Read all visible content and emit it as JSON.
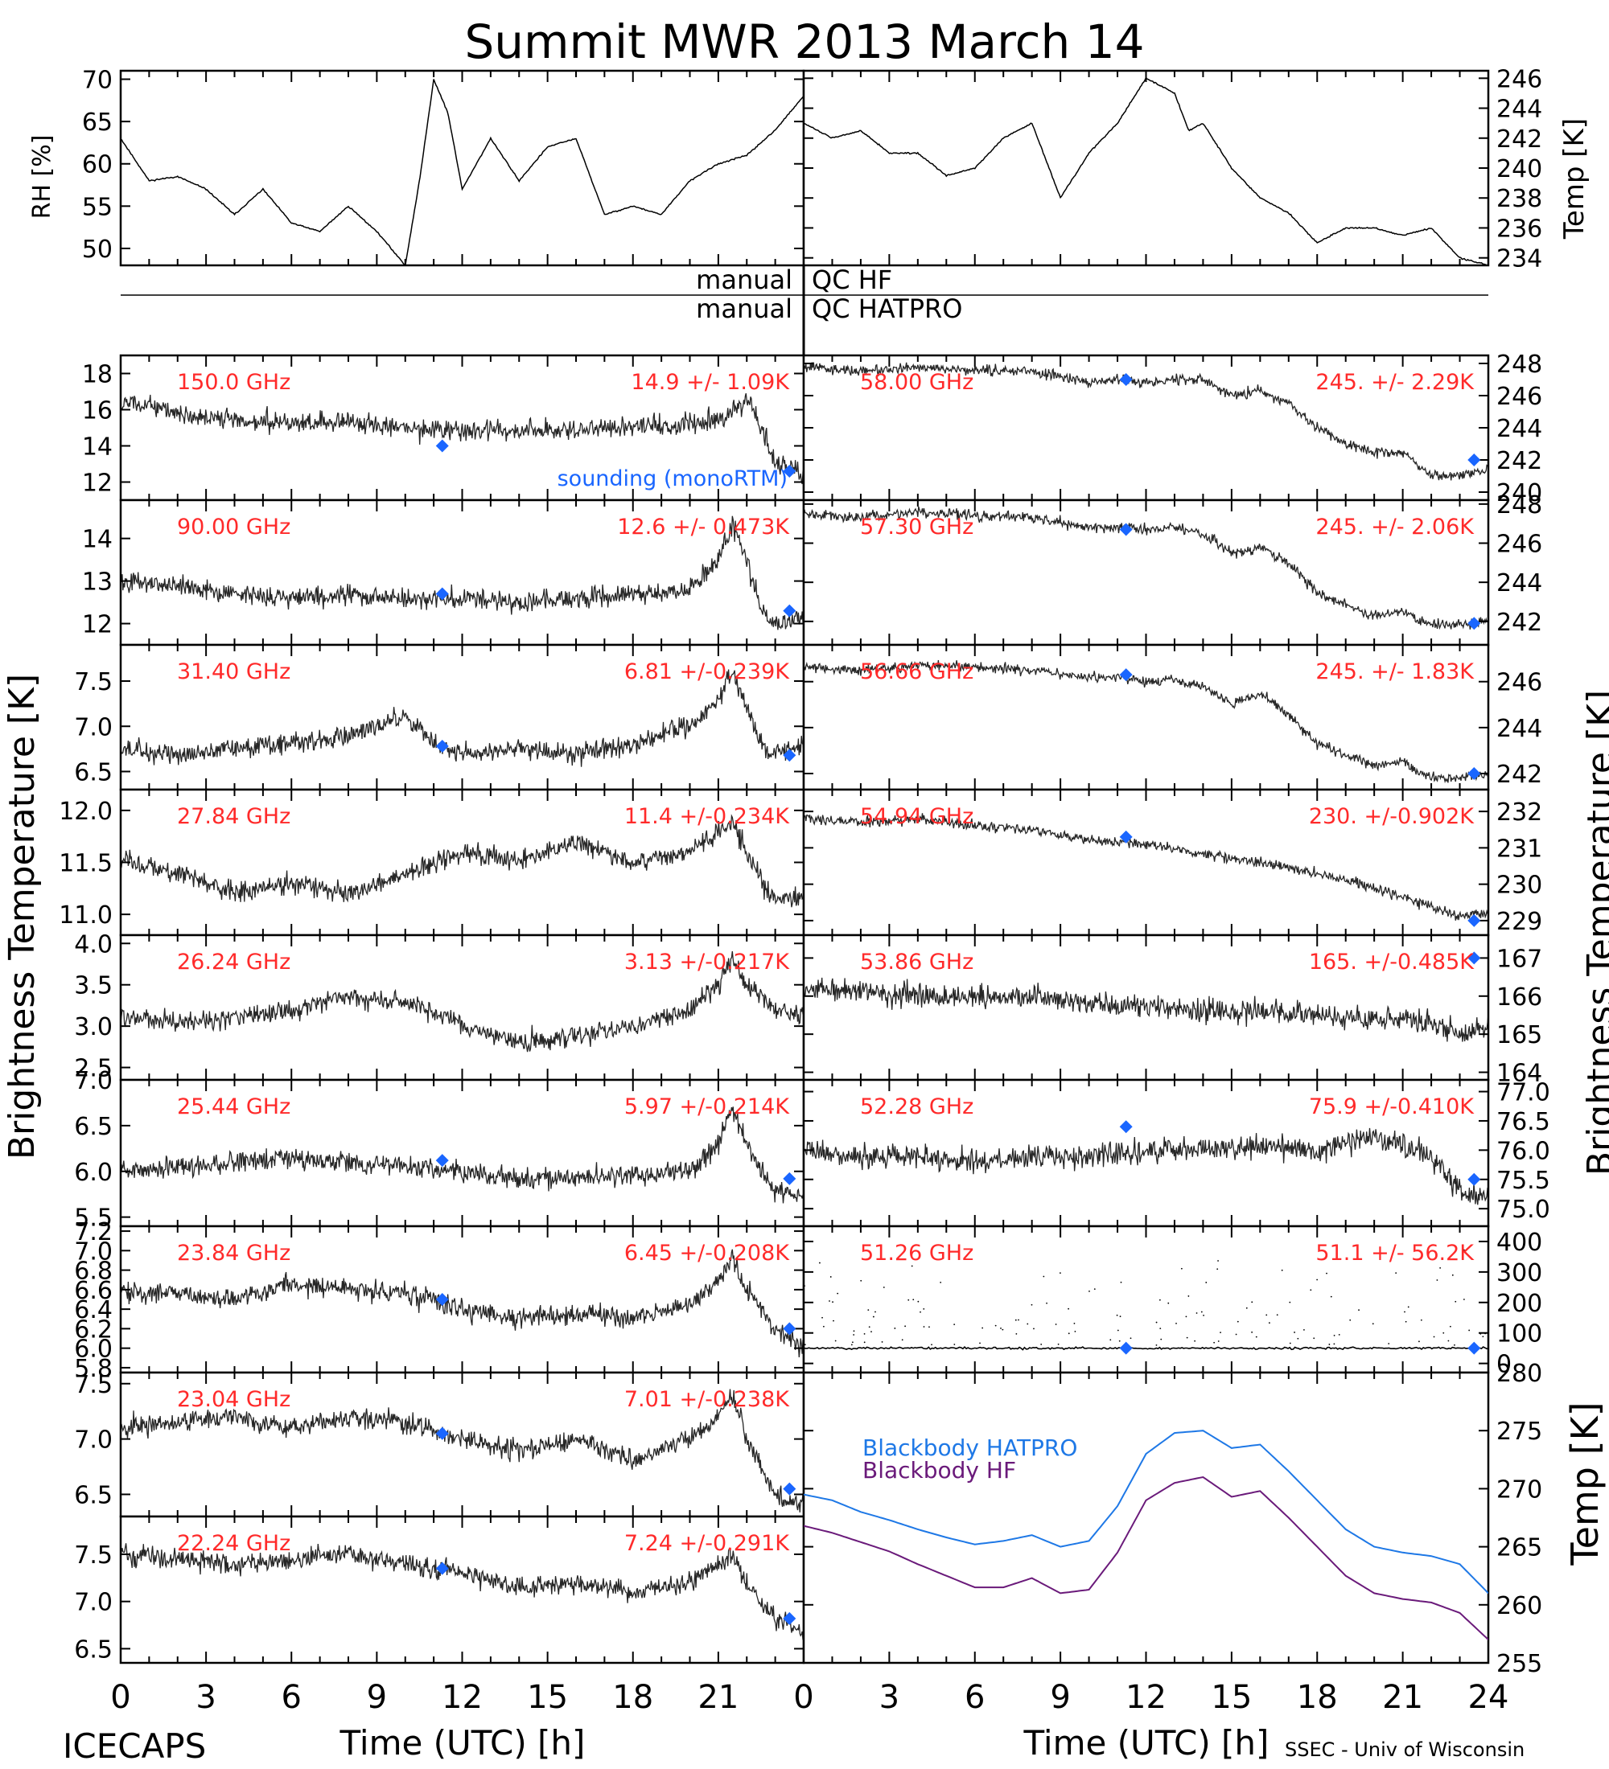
{
  "title": "Summit MWR 2013 March 14",
  "footer": {
    "left": "ICECAPS",
    "right": "SSEC - Univ of Wisconsin",
    "xlabel": "Time (UTC) [h]"
  },
  "axis_labels": {
    "left_bt": "Brightness Temperature [K]",
    "right_bt": "Brightness Temperature [K]",
    "rh": "RH [%]",
    "temp_top": "Temp [K]",
    "temp_bottom": "Temp [K]"
  },
  "qc": {
    "hf_left": "manual",
    "hf_right": "QC HF",
    "hatpro_left": "manual",
    "hatpro_right": "QC HATPRO"
  },
  "legend": {
    "sounding": "sounding (monoRTM)",
    "bb_hatpro": "Blackbody HATPRO",
    "bb_hf": "Blackbody HF"
  },
  "colors": {
    "data": "#000000",
    "label": "#ff2a2a",
    "sounding": "#1a66ff",
    "bb_hatpro": "#1e78e6",
    "bb_hf": "#6a1a7a"
  },
  "x_ticks": [
    "0",
    "3",
    "6",
    "9",
    "12",
    "15",
    "18",
    "21",
    "24"
  ],
  "chart_data": [
    {
      "type": "line",
      "title": "RH",
      "ylabel": "RH [%]",
      "ylim": [
        48,
        71
      ],
      "yticks": [
        "50",
        "55",
        "60",
        "65",
        "70"
      ],
      "xlim": [
        0,
        24
      ],
      "x": [
        0,
        1,
        2,
        3,
        4,
        5,
        6,
        7,
        8,
        9,
        9.5,
        10,
        10.5,
        11,
        11.5,
        12,
        12.5,
        13,
        14,
        15,
        16,
        17,
        18,
        19,
        20,
        21,
        22,
        23,
        24
      ],
      "values": [
        63,
        58,
        58.5,
        57,
        54,
        57,
        53,
        52,
        55,
        52,
        50,
        48,
        58,
        70,
        66,
        57,
        60,
        63,
        58,
        62,
        63,
        54,
        55,
        54,
        58,
        60,
        61,
        64,
        68
      ]
    },
    {
      "type": "line",
      "title": "Temp",
      "ylabel": "Temp [K]",
      "ylim": [
        233.5,
        246.5
      ],
      "yticks": [
        "234",
        "236",
        "238",
        "240",
        "242",
        "244",
        "246"
      ],
      "xlim": [
        0,
        24
      ],
      "x": [
        0,
        1,
        2,
        3,
        4,
        5,
        6,
        7,
        8,
        9,
        10,
        11,
        12,
        13,
        13.5,
        14,
        15,
        16,
        17,
        18,
        19,
        20,
        21,
        22,
        23,
        24
      ],
      "values": [
        243,
        242,
        242.5,
        241,
        241,
        239.5,
        240,
        242,
        243,
        238,
        241,
        243,
        246,
        245,
        242.5,
        243,
        240,
        238,
        237,
        235,
        236,
        236,
        235.5,
        236,
        234,
        233.5
      ]
    },
    {
      "type": "line",
      "title": "150.0 GHz",
      "label": "150.0 GHz",
      "stats": "14.9 +/- 1.09K",
      "ylim": [
        11,
        19
      ],
      "yticks": [
        "12",
        "14",
        "16",
        "18"
      ],
      "xlim": [
        0,
        24
      ],
      "x": [
        0,
        2,
        4,
        6,
        8,
        10,
        12,
        14,
        16,
        18,
        20,
        21,
        22,
        22.5,
        23,
        24
      ],
      "values": [
        16.5,
        15.8,
        15.5,
        15.2,
        15.3,
        15.0,
        14.8,
        14.9,
        14.8,
        15.1,
        15.2,
        15.5,
        16.5,
        15.0,
        13.0,
        12.5
      ],
      "sounding": [
        {
          "x": 11.3,
          "y": 14.0
        },
        {
          "x": 23.5,
          "y": 12.6
        }
      ]
    },
    {
      "type": "line",
      "title": "90.00 GHz",
      "label": "90.00 GHz",
      "stats": "12.6 +/- 0.473K",
      "ylim": [
        11.5,
        14.9
      ],
      "yticks": [
        "12",
        "13",
        "14"
      ],
      "xlim": [
        0,
        24
      ],
      "x": [
        0,
        2,
        4,
        6,
        8,
        10,
        12,
        14,
        16,
        18,
        20,
        21,
        21.5,
        22,
        22.5,
        23,
        24
      ],
      "values": [
        13.0,
        12.9,
        12.7,
        12.6,
        12.7,
        12.6,
        12.6,
        12.5,
        12.6,
        12.7,
        12.8,
        13.5,
        14.3,
        13.5,
        12.3,
        12.0,
        12.1
      ],
      "sounding": [
        {
          "x": 11.3,
          "y": 12.7
        },
        {
          "x": 23.5,
          "y": 12.3
        }
      ]
    },
    {
      "type": "line",
      "title": "31.40 GHz",
      "label": "31.40 GHz",
      "stats": "6.81 +/-0.239K",
      "ylim": [
        6.3,
        7.9
      ],
      "yticks": [
        "6.5",
        "7.0",
        "7.5"
      ],
      "xlim": [
        0,
        24
      ],
      "x": [
        0,
        2,
        4,
        6,
        8,
        10,
        11,
        12,
        14,
        16,
        18,
        20,
        21,
        21.5,
        22,
        22.5,
        23,
        24
      ],
      "values": [
        6.75,
        6.7,
        6.75,
        6.8,
        6.9,
        7.1,
        6.8,
        6.7,
        6.75,
        6.7,
        6.8,
        7.0,
        7.3,
        7.6,
        7.2,
        6.8,
        6.7,
        6.8
      ],
      "sounding": [
        {
          "x": 11.3,
          "y": 6.78
        },
        {
          "x": 23.5,
          "y": 6.68
        }
      ]
    },
    {
      "type": "line",
      "title": "27.84 GHz",
      "label": "27.84 GHz",
      "stats": "11.4 +/-0.234K",
      "ylim": [
        10.8,
        12.2
      ],
      "yticks": [
        "11.0",
        "11.5",
        "12.0"
      ],
      "xlim": [
        0,
        24
      ],
      "x": [
        0,
        2,
        4,
        6,
        8,
        10,
        12,
        14,
        16,
        18,
        20,
        21,
        21.5,
        22,
        23,
        24
      ],
      "values": [
        11.5,
        11.4,
        11.2,
        11.3,
        11.2,
        11.4,
        11.6,
        11.5,
        11.7,
        11.5,
        11.6,
        11.8,
        11.9,
        11.6,
        11.1,
        11.2
      ],
      "sounding": []
    },
    {
      "type": "line",
      "title": "26.24 GHz",
      "label": "26.24 GHz",
      "stats": "3.13 +/-0.217K",
      "ylim": [
        2.35,
        4.1
      ],
      "yticks": [
        "2.5",
        "3.0",
        "3.5",
        "4.0"
      ],
      "xlim": [
        0,
        24
      ],
      "x": [
        0,
        2,
        4,
        6,
        8,
        10,
        12,
        14,
        16,
        18,
        20,
        21,
        21.5,
        22,
        23,
        24
      ],
      "values": [
        3.1,
        3.05,
        3.1,
        3.2,
        3.35,
        3.3,
        3.0,
        2.8,
        2.9,
        3.0,
        3.2,
        3.5,
        3.8,
        3.5,
        3.2,
        3.15
      ],
      "sounding": []
    },
    {
      "type": "line",
      "title": "25.44 GHz",
      "label": "25.44 GHz",
      "stats": "5.97 +/-0.214K",
      "ylim": [
        5.4,
        7.0
      ],
      "yticks": [
        "5.5",
        "6.0",
        "6.5",
        "7.0"
      ],
      "xlim": [
        0,
        24
      ],
      "x": [
        0,
        2,
        4,
        6,
        8,
        10,
        12,
        14,
        16,
        18,
        20,
        21,
        21.5,
        22,
        23,
        24
      ],
      "values": [
        6.0,
        6.05,
        6.1,
        6.15,
        6.1,
        6.05,
        6.0,
        5.9,
        5.95,
        5.95,
        6.0,
        6.3,
        6.7,
        6.3,
        5.8,
        5.7
      ],
      "sounding": [
        {
          "x": 11.3,
          "y": 6.12
        },
        {
          "x": 23.5,
          "y": 5.92
        }
      ]
    },
    {
      "type": "line",
      "title": "23.84 GHz",
      "label": "23.84 GHz",
      "stats": "6.45 +/-0.208K",
      "ylim": [
        5.75,
        7.25
      ],
      "yticks": [
        "5.8",
        "6.0",
        "6.2",
        "6.4",
        "6.6",
        "6.8",
        "7.0",
        "7.2"
      ],
      "xlim": [
        0,
        24
      ],
      "x": [
        0,
        2,
        4,
        6,
        8,
        10,
        12,
        14,
        16,
        18,
        20,
        21,
        21.5,
        22,
        23,
        24
      ],
      "values": [
        6.6,
        6.55,
        6.5,
        6.65,
        6.6,
        6.55,
        6.4,
        6.3,
        6.35,
        6.3,
        6.45,
        6.7,
        6.9,
        6.6,
        6.2,
        6.0
      ],
      "sounding": [
        {
          "x": 11.3,
          "y": 6.5
        },
        {
          "x": 23.5,
          "y": 6.2
        }
      ]
    },
    {
      "type": "line",
      "title": "23.04 GHz",
      "label": "23.04 GHz",
      "stats": "7.01 +/-0.238K",
      "ylim": [
        6.3,
        7.6
      ],
      "yticks": [
        "6.5",
        "7.0",
        "7.5"
      ],
      "xlim": [
        0,
        24
      ],
      "x": [
        0,
        2,
        4,
        6,
        8,
        10,
        12,
        14,
        16,
        18,
        20,
        21,
        21.5,
        22,
        23,
        24
      ],
      "values": [
        7.1,
        7.15,
        7.2,
        7.1,
        7.2,
        7.15,
        7.0,
        6.9,
        7.0,
        6.8,
        7.0,
        7.2,
        7.4,
        7.0,
        6.5,
        6.4
      ],
      "sounding": [
        {
          "x": 11.3,
          "y": 7.05
        },
        {
          "x": 23.5,
          "y": 6.55
        }
      ]
    },
    {
      "type": "line",
      "title": "22.24 GHz",
      "label": "22.24 GHz",
      "stats": "7.24 +/-0.291K",
      "ylim": [
        6.35,
        7.9
      ],
      "yticks": [
        "6.5",
        "7.0",
        "7.5"
      ],
      "xlim": [
        0,
        24
      ],
      "x": [
        0,
        2,
        4,
        6,
        8,
        10,
        12,
        14,
        16,
        18,
        20,
        21,
        21.5,
        22,
        23,
        24
      ],
      "values": [
        7.5,
        7.45,
        7.4,
        7.45,
        7.5,
        7.4,
        7.3,
        7.15,
        7.2,
        7.1,
        7.2,
        7.4,
        7.5,
        7.2,
        6.8,
        6.7
      ],
      "sounding": [
        {
          "x": 11.3,
          "y": 7.35
        },
        {
          "x": 23.5,
          "y": 6.82
        }
      ]
    },
    {
      "type": "line",
      "title": "58.00 GHz",
      "label": "58.00 GHz",
      "stats": "245. +/- 2.29K",
      "ylim": [
        239.5,
        248.5
      ],
      "yticks": [
        "240",
        "242",
        "244",
        "246",
        "248"
      ],
      "xlim": [
        0,
        24
      ],
      "x": [
        0,
        2,
        4,
        6,
        8,
        10,
        11,
        12,
        13,
        14,
        15,
        16,
        17,
        18,
        19,
        20,
        21,
        22,
        23,
        24
      ],
      "values": [
        247.8,
        247.5,
        247.8,
        247.6,
        247.5,
        246.8,
        247.0,
        246.8,
        247.0,
        247.0,
        246.0,
        246.3,
        245.5,
        244.0,
        243.0,
        242.5,
        242.5,
        241.0,
        241.0,
        241.5
      ],
      "sounding": [
        {
          "x": 11.3,
          "y": 247.0
        },
        {
          "x": 23.5,
          "y": 242.0
        }
      ]
    },
    {
      "type": "line",
      "title": "57.30 GHz",
      "label": "57.30 GHz",
      "stats": "245. +/- 2.06K",
      "ylim": [
        240.8,
        248.2
      ],
      "yticks": [
        "242",
        "244",
        "246",
        "248"
      ],
      "xlim": [
        0,
        24
      ],
      "x": [
        0,
        2,
        4,
        6,
        8,
        10,
        11,
        12,
        13,
        14,
        15,
        16,
        17,
        18,
        19,
        20,
        21,
        22,
        23,
        24
      ],
      "values": [
        247.5,
        247.3,
        247.6,
        247.4,
        247.3,
        246.8,
        246.8,
        246.7,
        246.8,
        246.5,
        245.5,
        245.8,
        245.0,
        243.5,
        242.8,
        242.3,
        242.5,
        241.8,
        241.8,
        242.0
      ],
      "sounding": [
        {
          "x": 11.3,
          "y": 246.7
        },
        {
          "x": 23.5,
          "y": 241.9
        }
      ]
    },
    {
      "type": "line",
      "title": "56.66 GHz",
      "label": "56.66 GHz",
      "stats": "245. +/- 1.83K",
      "ylim": [
        241.3,
        247.6
      ],
      "yticks": [
        "242",
        "244",
        "246"
      ],
      "xlim": [
        0,
        24
      ],
      "x": [
        0,
        2,
        4,
        6,
        8,
        10,
        11,
        12,
        13,
        14,
        15,
        16,
        17,
        18,
        19,
        20,
        21,
        22,
        23,
        24
      ],
      "values": [
        246.7,
        246.5,
        246.7,
        246.6,
        246.5,
        246.2,
        246.2,
        246.0,
        246.1,
        245.8,
        245.0,
        245.5,
        244.6,
        243.3,
        242.8,
        242.4,
        242.5,
        241.8,
        241.8,
        242.0
      ],
      "sounding": [
        {
          "x": 11.3,
          "y": 246.3
        },
        {
          "x": 23.5,
          "y": 242.0
        }
      ]
    },
    {
      "type": "line",
      "title": "54.94 GHz",
      "label": "54.94 GHz",
      "stats": "230. +/-0.902K",
      "ylim": [
        228.6,
        232.6
      ],
      "yticks": [
        "229",
        "230",
        "231",
        "232"
      ],
      "xlim": [
        0,
        24
      ],
      "x": [
        0,
        2,
        4,
        6,
        8,
        10,
        12,
        14,
        16,
        18,
        20,
        22,
        23,
        24
      ],
      "values": [
        231.8,
        231.7,
        231.8,
        231.6,
        231.5,
        231.2,
        231.1,
        230.8,
        230.6,
        230.3,
        229.9,
        229.4,
        229.1,
        229.2
      ],
      "sounding": [
        {
          "x": 11.3,
          "y": 231.3
        },
        {
          "x": 23.5,
          "y": 229.0
        }
      ]
    },
    {
      "type": "line",
      "title": "53.86 GHz",
      "label": "53.86 GHz",
      "stats": "165. +/-0.485K",
      "ylim": [
        163.8,
        167.6
      ],
      "yticks": [
        "164",
        "165",
        "166",
        "167"
      ],
      "xlim": [
        0,
        24
      ],
      "x": [
        0,
        2,
        4,
        6,
        8,
        10,
        12,
        14,
        16,
        18,
        20,
        22,
        23,
        24
      ],
      "values": [
        166.2,
        166.1,
        166.0,
        166.0,
        166.0,
        165.8,
        165.7,
        165.6,
        165.6,
        165.5,
        165.4,
        165.3,
        165.0,
        165.2
      ],
      "sounding": [
        {
          "x": 23.5,
          "y": 167.0
        }
      ]
    },
    {
      "type": "line",
      "title": "52.28 GHz",
      "label": "52.28 GHz",
      "stats": "75.9 +/-0.410K",
      "ylim": [
        74.7,
        77.2
      ],
      "yticks": [
        "75.0",
        "75.5",
        "76.0",
        "76.5",
        "77.0"
      ],
      "xlim": [
        0,
        24
      ],
      "x": [
        0,
        2,
        4,
        6,
        8,
        10,
        12,
        14,
        16,
        18,
        20,
        21,
        22,
        23,
        24
      ],
      "values": [
        76.0,
        75.9,
        75.9,
        75.8,
        75.9,
        75.9,
        76.0,
        76.0,
        76.1,
        76.0,
        76.2,
        76.1,
        75.9,
        75.3,
        75.2
      ],
      "sounding": [
        {
          "x": 11.3,
          "y": 76.4
        },
        {
          "x": 23.5,
          "y": 75.5
        }
      ]
    },
    {
      "type": "scatter",
      "title": "51.26 GHz",
      "label": "51.26 GHz",
      "stats": "51.1 +/- 56.2K",
      "ylim": [
        -30,
        450
      ],
      "yticks": [
        "0",
        "100",
        "200",
        "300",
        "400"
      ],
      "xlim": [
        0,
        24
      ],
      "x": [
        0,
        4,
        8,
        12,
        16,
        20,
        24
      ],
      "values": [
        50,
        50,
        50,
        50,
        50,
        50,
        50
      ],
      "sounding": [
        {
          "x": 11.3,
          "y": 50
        },
        {
          "x": 23.5,
          "y": 50
        }
      ]
    },
    {
      "type": "line",
      "title": "Blackbody",
      "ylabel": "Temp [K]",
      "ylim": [
        255,
        280
      ],
      "yticks": [
        "255",
        "260",
        "265",
        "270",
        "275",
        "280"
      ],
      "xlim": [
        0,
        24
      ],
      "x": [
        0,
        1,
        2,
        3,
        4,
        5,
        6,
        7,
        8,
        9,
        10,
        11,
        12,
        13,
        14,
        15,
        16,
        17,
        18,
        19,
        20,
        21,
        22,
        23,
        24
      ],
      "series": [
        {
          "name": "Blackbody HATPRO",
          "values": [
            269.5,
            269.0,
            268.0,
            267.3,
            266.5,
            265.8,
            265.2,
            265.5,
            266.0,
            265.0,
            265.5,
            268.5,
            273.0,
            274.8,
            275.0,
            273.5,
            273.8,
            271.5,
            269.0,
            266.5,
            265.0,
            264.5,
            264.2,
            263.5,
            261.0
          ]
        },
        {
          "name": "Blackbody HF",
          "values": [
            266.8,
            266.2,
            265.4,
            264.6,
            263.5,
            262.5,
            261.5,
            261.5,
            262.3,
            261.0,
            261.3,
            264.5,
            269.0,
            270.5,
            271.0,
            269.3,
            269.8,
            267.5,
            265.0,
            262.5,
            261.0,
            260.5,
            260.2,
            259.3,
            257.0
          ]
        }
      ]
    }
  ]
}
